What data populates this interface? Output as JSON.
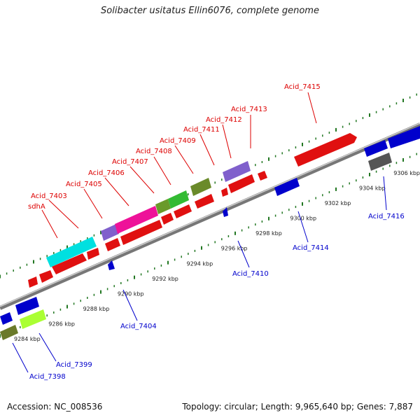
{
  "title": "Solibacter usitatus Ellin6076, complete genome",
  "footer": {
    "accession": "Accession: NC_008536",
    "topology": "Topology: circular; Length: 9,965,640 bp; Genes: 7,887"
  },
  "colors": {
    "forward_label": "#dd0000",
    "reverse_label": "#0000cc",
    "tick": "#227722",
    "backbone": "#888888"
  },
  "ruler": {
    "unit": "kbp",
    "ticks": [
      "9284 kbp",
      "9286 kbp",
      "9288 kbp",
      "9290 kbp",
      "9292 kbp",
      "9294 kbp",
      "9296 kbp",
      "9298 kbp",
      "9300 kbp",
      "9302 kbp",
      "9304 kbp",
      "9306 kbp"
    ]
  },
  "forward_labels": [
    "Acid_7415",
    "Acid_7413",
    "Acid_7412",
    "Acid_7411",
    "Acid_7409",
    "Acid_7408",
    "Acid_7407",
    "Acid_7406",
    "Acid_7405",
    "Acid_7403",
    "sdhA"
  ],
  "reverse_labels": [
    "Acid_7416",
    "Acid_7414",
    "Acid_7410",
    "Acid_7404",
    "Acid_7399",
    "Acid_7398"
  ]
}
